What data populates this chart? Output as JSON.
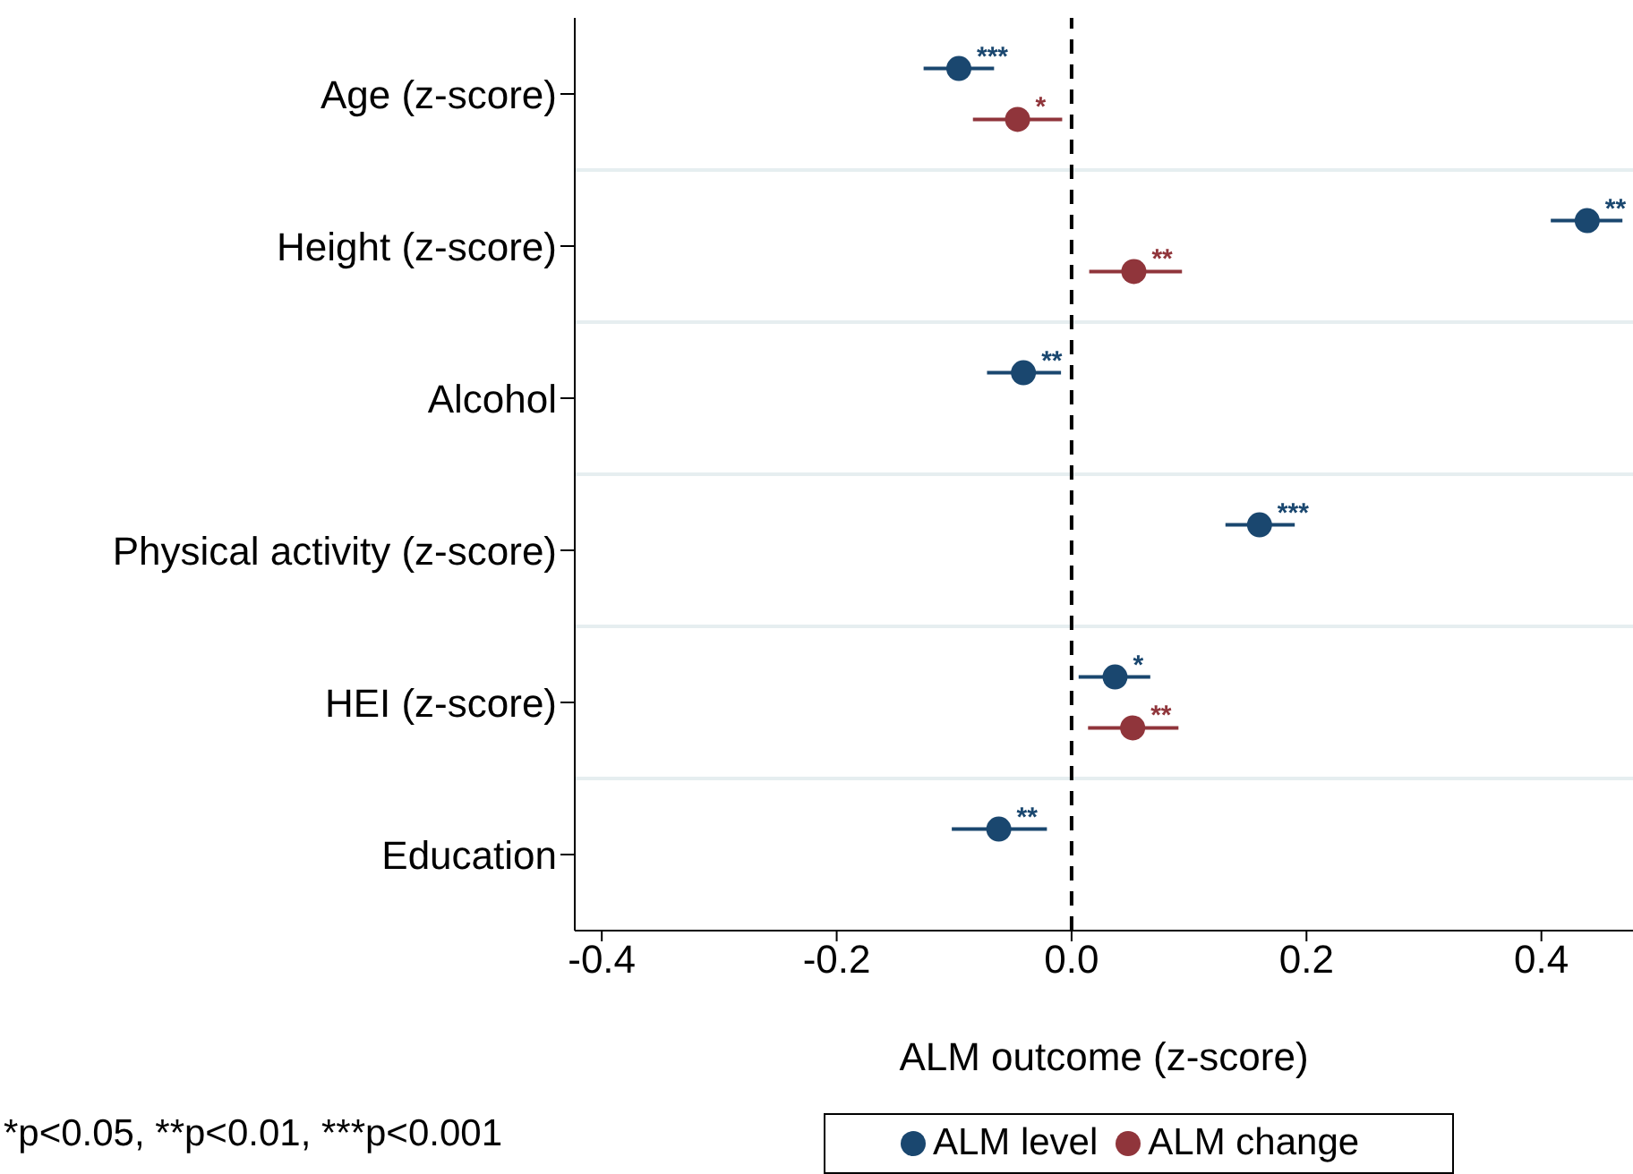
{
  "chart_data": {
    "type": "scatter",
    "categories": [
      "Age (z-score)",
      "Height (z-score)",
      "Alcohol",
      "Physical activity (z-score)",
      "HEI (z-score)",
      "Education"
    ],
    "series": [
      {
        "name": "ALM level",
        "color": "#1a476f",
        "values": [
          -0.096,
          0.439,
          -0.041,
          0.16,
          0.037,
          -0.062
        ],
        "errors": [
          [
            -0.126,
            -0.066
          ],
          [
            0.408,
            0.469
          ],
          [
            -0.072,
            -0.009
          ],
          [
            0.131,
            0.19
          ],
          [
            0.006,
            0.067
          ],
          [
            -0.102,
            -0.021
          ]
        ],
        "value_labels": [
          "***",
          "**",
          "**",
          "***",
          "*",
          "**"
        ]
      },
      {
        "name": "ALM change",
        "color": "#90353b",
        "values": [
          -0.046,
          0.053,
          null,
          null,
          0.052,
          null
        ],
        "errors": [
          [
            -0.084,
            -0.008
          ],
          [
            0.015,
            0.094
          ],
          null,
          null,
          [
            0.014,
            0.091
          ],
          null
        ],
        "value_labels": [
          "*",
          "**",
          null,
          null,
          "**",
          null
        ]
      }
    ],
    "xlabel": "ALM outcome (z-score)",
    "xlim": [
      -0.423,
      0.478
    ],
    "orientation": "horizontal",
    "xticks": [
      {
        "value": -0.4,
        "label": "-0.4"
      },
      {
        "value": -0.2,
        "label": "-0.2"
      },
      {
        "value": 0,
        "label": "0.0"
      },
      {
        "value": 0.2,
        "label": "0.2"
      },
      {
        "value": 0.4,
        "label": "0.4"
      }
    ],
    "ref_lines": [
      {
        "axis": "x",
        "value": 0,
        "color": "#000000",
        "line_style": "dashed"
      }
    ],
    "grid": "y",
    "legend": "bottom",
    "marker": "circle",
    "annotations": [
      "*p<0.05, **p<0.01, ***p<0.001"
    ]
  }
}
